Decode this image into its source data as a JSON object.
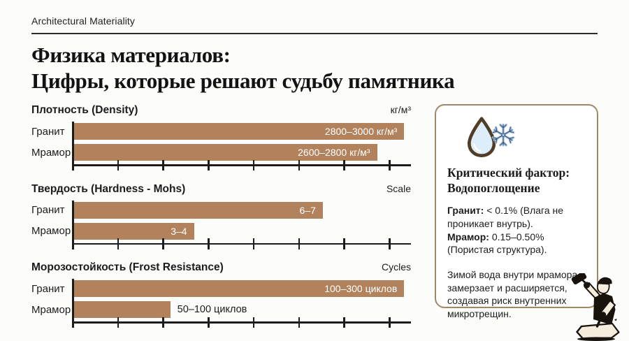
{
  "header": {
    "eyebrow": "Architectural Materiality",
    "title_line1": "Физика материалов:",
    "title_line2": "Цифры, которые решают судьбу памятника"
  },
  "colors": {
    "bar": "#b1825c",
    "axis": "#1c1c1c",
    "panel_border": "#a28767",
    "bar_label_inside": "#ffffff",
    "drop_fill": "#ddedf9",
    "drop_outline": "#4f3d26",
    "snowflake_blue": "#a3c4e6",
    "snowflake_outline": "#3a4c66",
    "ink": "#17120c"
  },
  "chart_data": [
    {
      "type": "bar",
      "title": "Плотность (Density)",
      "unit": "кг/м³",
      "categories": [
        "Гранит",
        "Мрамор"
      ],
      "values": [
        [
          2800,
          3000
        ],
        [
          2600,
          2800
        ]
      ],
      "value_labels": [
        "2800–3000 кг/м³",
        "2600–2800 кг/м³"
      ],
      "bar_pct": [
        98,
        90
      ],
      "label_inside": [
        true,
        true
      ],
      "ticks": 8,
      "axis_labels_shown": false,
      "grid": false,
      "legend": "none"
    },
    {
      "type": "bar",
      "title": "Твердость (Hardness - Mohs)",
      "unit": "Scale",
      "categories": [
        "Гранит",
        "Мрамор"
      ],
      "values": [
        [
          6,
          7
        ],
        [
          3,
          4
        ]
      ],
      "value_labels": [
        "6–7",
        "3–4"
      ],
      "bar_pct": [
        74,
        36
      ],
      "label_inside": [
        true,
        true
      ],
      "ticks": 8,
      "axis_labels_shown": false,
      "grid": false,
      "legend": "none"
    },
    {
      "type": "bar",
      "title": "Морозостойкость (Frost Resistance)",
      "unit": "Cycles",
      "categories": [
        "Гранит",
        "Мрамор"
      ],
      "values": [
        [
          100,
          300
        ],
        [
          50,
          100
        ]
      ],
      "value_labels": [
        "100–300 циклов",
        "50–100 циклов"
      ],
      "bar_pct": [
        98,
        29
      ],
      "label_inside": [
        true,
        false
      ],
      "ticks": 8,
      "axis_labels_shown": false,
      "grid": false,
      "legend": "none"
    }
  ],
  "panel": {
    "icons": [
      "water-drop",
      "snowflake"
    ],
    "title_line1": "Критический фактор:",
    "title_line2": "Водопоглощение",
    "facts": [
      {
        "label": "Гранит:",
        "text": "< 0.1% (Влага не проникает внутрь)."
      },
      {
        "label": "Мрамор:",
        "text": "0.15–0.50% (Пористая структура)."
      }
    ],
    "note": "Зимой вода внутри мрамора замерзает и расширяется, создавая риск внутренних микротрещин."
  }
}
